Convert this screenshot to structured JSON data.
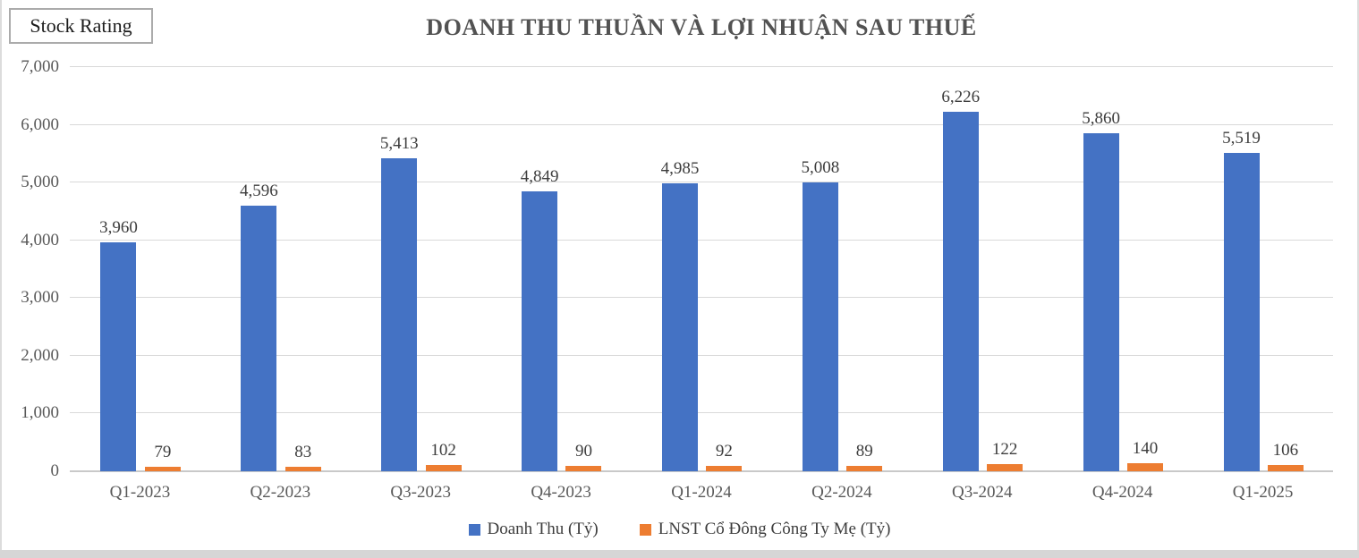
{
  "header": {
    "badge_label": "Stock Rating",
    "title": "DOANH THU THUẦN VÀ LỢI NHUẬN SAU THUẾ"
  },
  "colors": {
    "revenue_bar": "#4472C4",
    "profit_bar": "#ED7D31",
    "gridline": "#d9d9d9",
    "title_text": "#525252",
    "tick_text": "#595959"
  },
  "chart_data": {
    "type": "bar",
    "title": "DOANH THU THUẦN VÀ LỢI NHUẬN SAU THUẾ",
    "categories": [
      "Q1-2023",
      "Q2-2023",
      "Q3-2023",
      "Q4-2023",
      "Q1-2024",
      "Q2-2024",
      "Q3-2024",
      "Q4-2024",
      "Q1-2025"
    ],
    "series": [
      {
        "name": "Doanh Thu (Tỷ)",
        "color": "#4472C4",
        "values": [
          3960,
          4596,
          5413,
          4849,
          4985,
          5008,
          6226,
          5860,
          5519
        ],
        "labels": [
          "3,960",
          "4,596",
          "5,413",
          "4,849",
          "4,985",
          "5,008",
          "6,226",
          "5,860",
          "5,519"
        ]
      },
      {
        "name": "LNST Cổ Đông Công Ty Mẹ (Tỷ)",
        "color": "#ED7D31",
        "values": [
          79,
          83,
          102,
          90,
          92,
          89,
          122,
          140,
          106
        ],
        "labels": [
          "79",
          "83",
          "102",
          "90",
          "92",
          "89",
          "122",
          "140",
          "106"
        ]
      }
    ],
    "ylim": [
      0,
      7000
    ],
    "ytick_step": 1000,
    "ytick_labels": [
      "0",
      "1,000",
      "2,000",
      "3,000",
      "4,000",
      "5,000",
      "6,000",
      "7,000"
    ],
    "grid": true,
    "legend_position": "bottom"
  }
}
